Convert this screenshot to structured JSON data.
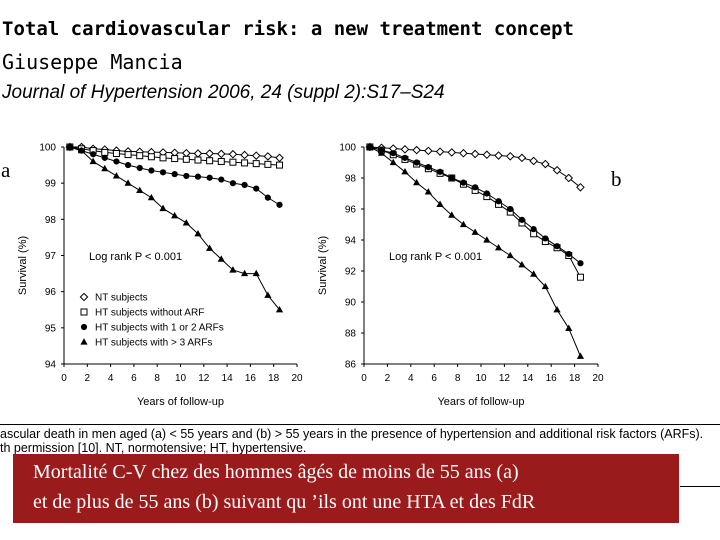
{
  "header": {
    "title": "Total cardiovascular risk: a new treatment concept",
    "author": "Giuseppe Mancia",
    "journal": "Journal of Hypertension 2006, 24 (suppl 2):S17–S24"
  },
  "panel_labels": [
    "a",
    "b"
  ],
  "caption": {
    "line1": "ascular death in men aged (a) < 55 years and (b) > 55 years in the presence of hypertension and additional risk factors (ARFs).",
    "line2": "th permission [10]. NT, normotensive; HT, hypertensive."
  },
  "french_note": {
    "line1": "Mortalité C-V chez des hommes âgés de moins de 55 ans (a)",
    "line2": "et de plus de 55 ans (b) suivant qu ’ils ont une HTA et des FdR"
  },
  "colors": {
    "french_box": "#9a1b1b",
    "series": "#000000"
  },
  "chart_data": [
    {
      "type": "line",
      "panel": "a",
      "xlabel": "Years of follow-up",
      "ylabel": "Survival (%)",
      "xlim": [
        0,
        20
      ],
      "ylim": [
        94,
        100
      ],
      "xticks": [
        0,
        2,
        4,
        6,
        8,
        10,
        12,
        14,
        16,
        18,
        20
      ],
      "yticks": [
        94,
        95,
        96,
        97,
        98,
        99,
        100
      ],
      "annotation": "Log rank P < 0.001",
      "legend_position": "bottom-left",
      "series": [
        {
          "name": "NT subjects",
          "marker": "diamond-open",
          "x": [
            0.5,
            1.5,
            2.5,
            3.5,
            4.5,
            5.5,
            6.5,
            7.5,
            8.5,
            9.5,
            10.5,
            11.5,
            12.5,
            13.5,
            14.5,
            15.5,
            16.5,
            17.5,
            18.5
          ],
          "y": [
            100,
            100,
            99.95,
            99.93,
            99.9,
            99.88,
            99.87,
            99.86,
            99.85,
            99.84,
            99.83,
            99.82,
            99.82,
            99.81,
            99.8,
            99.78,
            99.76,
            99.74,
            99.7
          ]
        },
        {
          "name": "HT subjects without ARF",
          "marker": "square-open",
          "x": [
            0.5,
            1.5,
            2.5,
            3.5,
            4.5,
            5.5,
            6.5,
            7.5,
            8.5,
            9.5,
            10.5,
            11.5,
            12.5,
            13.5,
            14.5,
            15.5,
            16.5,
            17.5,
            18.5
          ],
          "y": [
            100,
            99.95,
            99.9,
            99.85,
            99.82,
            99.79,
            99.76,
            99.73,
            99.7,
            99.68,
            99.66,
            99.64,
            99.62,
            99.6,
            99.58,
            99.56,
            99.54,
            99.52,
            99.5
          ]
        },
        {
          "name": "HT subjects with 1 or 2 ARFs",
          "marker": "circle-filled",
          "x": [
            0.5,
            1.5,
            2.5,
            3.5,
            4.5,
            5.5,
            6.5,
            7.5,
            8.5,
            9.5,
            10.5,
            11.5,
            12.5,
            13.5,
            14.5,
            15.5,
            16.5,
            17.5,
            18.5
          ],
          "y": [
            100,
            99.9,
            99.8,
            99.7,
            99.6,
            99.5,
            99.42,
            99.35,
            99.3,
            99.25,
            99.2,
            99.18,
            99.15,
            99.1,
            99.0,
            98.95,
            98.85,
            98.6,
            98.4
          ]
        },
        {
          "name": "HT subjects with > 3 ARFs",
          "marker": "triangle-filled",
          "x": [
            0.5,
            1.5,
            2.5,
            3.5,
            4.5,
            5.5,
            6.5,
            7.5,
            8.5,
            9.5,
            10.5,
            11.5,
            12.5,
            13.5,
            14.5,
            15.5,
            16.5,
            17.5,
            18.5
          ],
          "y": [
            100,
            99.9,
            99.6,
            99.4,
            99.2,
            99.0,
            98.8,
            98.6,
            98.3,
            98.1,
            97.9,
            97.6,
            97.2,
            96.9,
            96.6,
            96.5,
            96.5,
            95.9,
            95.5
          ]
        }
      ]
    },
    {
      "type": "line",
      "panel": "b",
      "xlabel": "Years of follow-up",
      "ylabel": "Survival (%)",
      "xlim": [
        0,
        20
      ],
      "ylim": [
        86,
        100
      ],
      "xticks": [
        0,
        2,
        4,
        6,
        8,
        10,
        12,
        14,
        16,
        18,
        20
      ],
      "yticks": [
        86,
        88,
        90,
        92,
        94,
        96,
        98,
        100
      ],
      "annotation": "Log rank P < 0.001",
      "series": [
        {
          "name": "NT subjects",
          "marker": "diamond-open",
          "x": [
            0.5,
            1.5,
            2.5,
            3.5,
            4.5,
            5.5,
            6.5,
            7.5,
            8.5,
            9.5,
            10.5,
            11.5,
            12.5,
            13.5,
            14.5,
            15.5,
            16.5,
            17.5,
            18.5
          ],
          "y": [
            100,
            99.95,
            99.9,
            99.85,
            99.8,
            99.75,
            99.7,
            99.65,
            99.6,
            99.55,
            99.5,
            99.45,
            99.4,
            99.3,
            99.1,
            98.9,
            98.5,
            98.0,
            97.4
          ]
        },
        {
          "name": "HT subjects without ARF",
          "marker": "square-open",
          "x": [
            0.5,
            1.5,
            2.5,
            3.5,
            4.5,
            5.5,
            6.5,
            7.5,
            8.5,
            9.5,
            10.5,
            11.5,
            12.5,
            13.5,
            14.5,
            15.5,
            16.5,
            17.5,
            18.5
          ],
          "y": [
            100,
            99.8,
            99.5,
            99.2,
            98.9,
            98.6,
            98.3,
            98.0,
            97.6,
            97.2,
            96.8,
            96.3,
            95.8,
            95.1,
            94.4,
            93.9,
            93.5,
            93.0,
            91.6
          ]
        },
        {
          "name": "HT subjects with 1 or 2 ARFs",
          "marker": "circle-filled",
          "x": [
            0.5,
            1.5,
            2.5,
            3.5,
            4.5,
            5.5,
            6.5,
            7.5,
            8.5,
            9.5,
            10.5,
            11.5,
            12.5,
            13.5,
            14.5,
            15.5,
            16.5,
            17.5,
            18.5
          ],
          "y": [
            100,
            99.8,
            99.6,
            99.3,
            99.0,
            98.7,
            98.4,
            98.0,
            97.7,
            97.4,
            97.0,
            96.5,
            96.0,
            95.3,
            94.7,
            94.1,
            93.6,
            93.1,
            92.5
          ]
        },
        {
          "name": "HT subjects with > 3 ARFs",
          "marker": "triangle-filled",
          "x": [
            0.5,
            1.5,
            2.5,
            3.5,
            4.5,
            5.5,
            6.5,
            7.5,
            8.5,
            9.5,
            10.5,
            11.5,
            12.5,
            13.5,
            14.5,
            15.5,
            16.5,
            17.5,
            18.5
          ],
          "y": [
            100,
            99.6,
            99.0,
            98.4,
            97.7,
            97.1,
            96.3,
            95.6,
            95.0,
            94.5,
            94.0,
            93.5,
            93.0,
            92.4,
            91.8,
            91.0,
            89.5,
            88.3,
            86.5
          ]
        }
      ]
    }
  ]
}
